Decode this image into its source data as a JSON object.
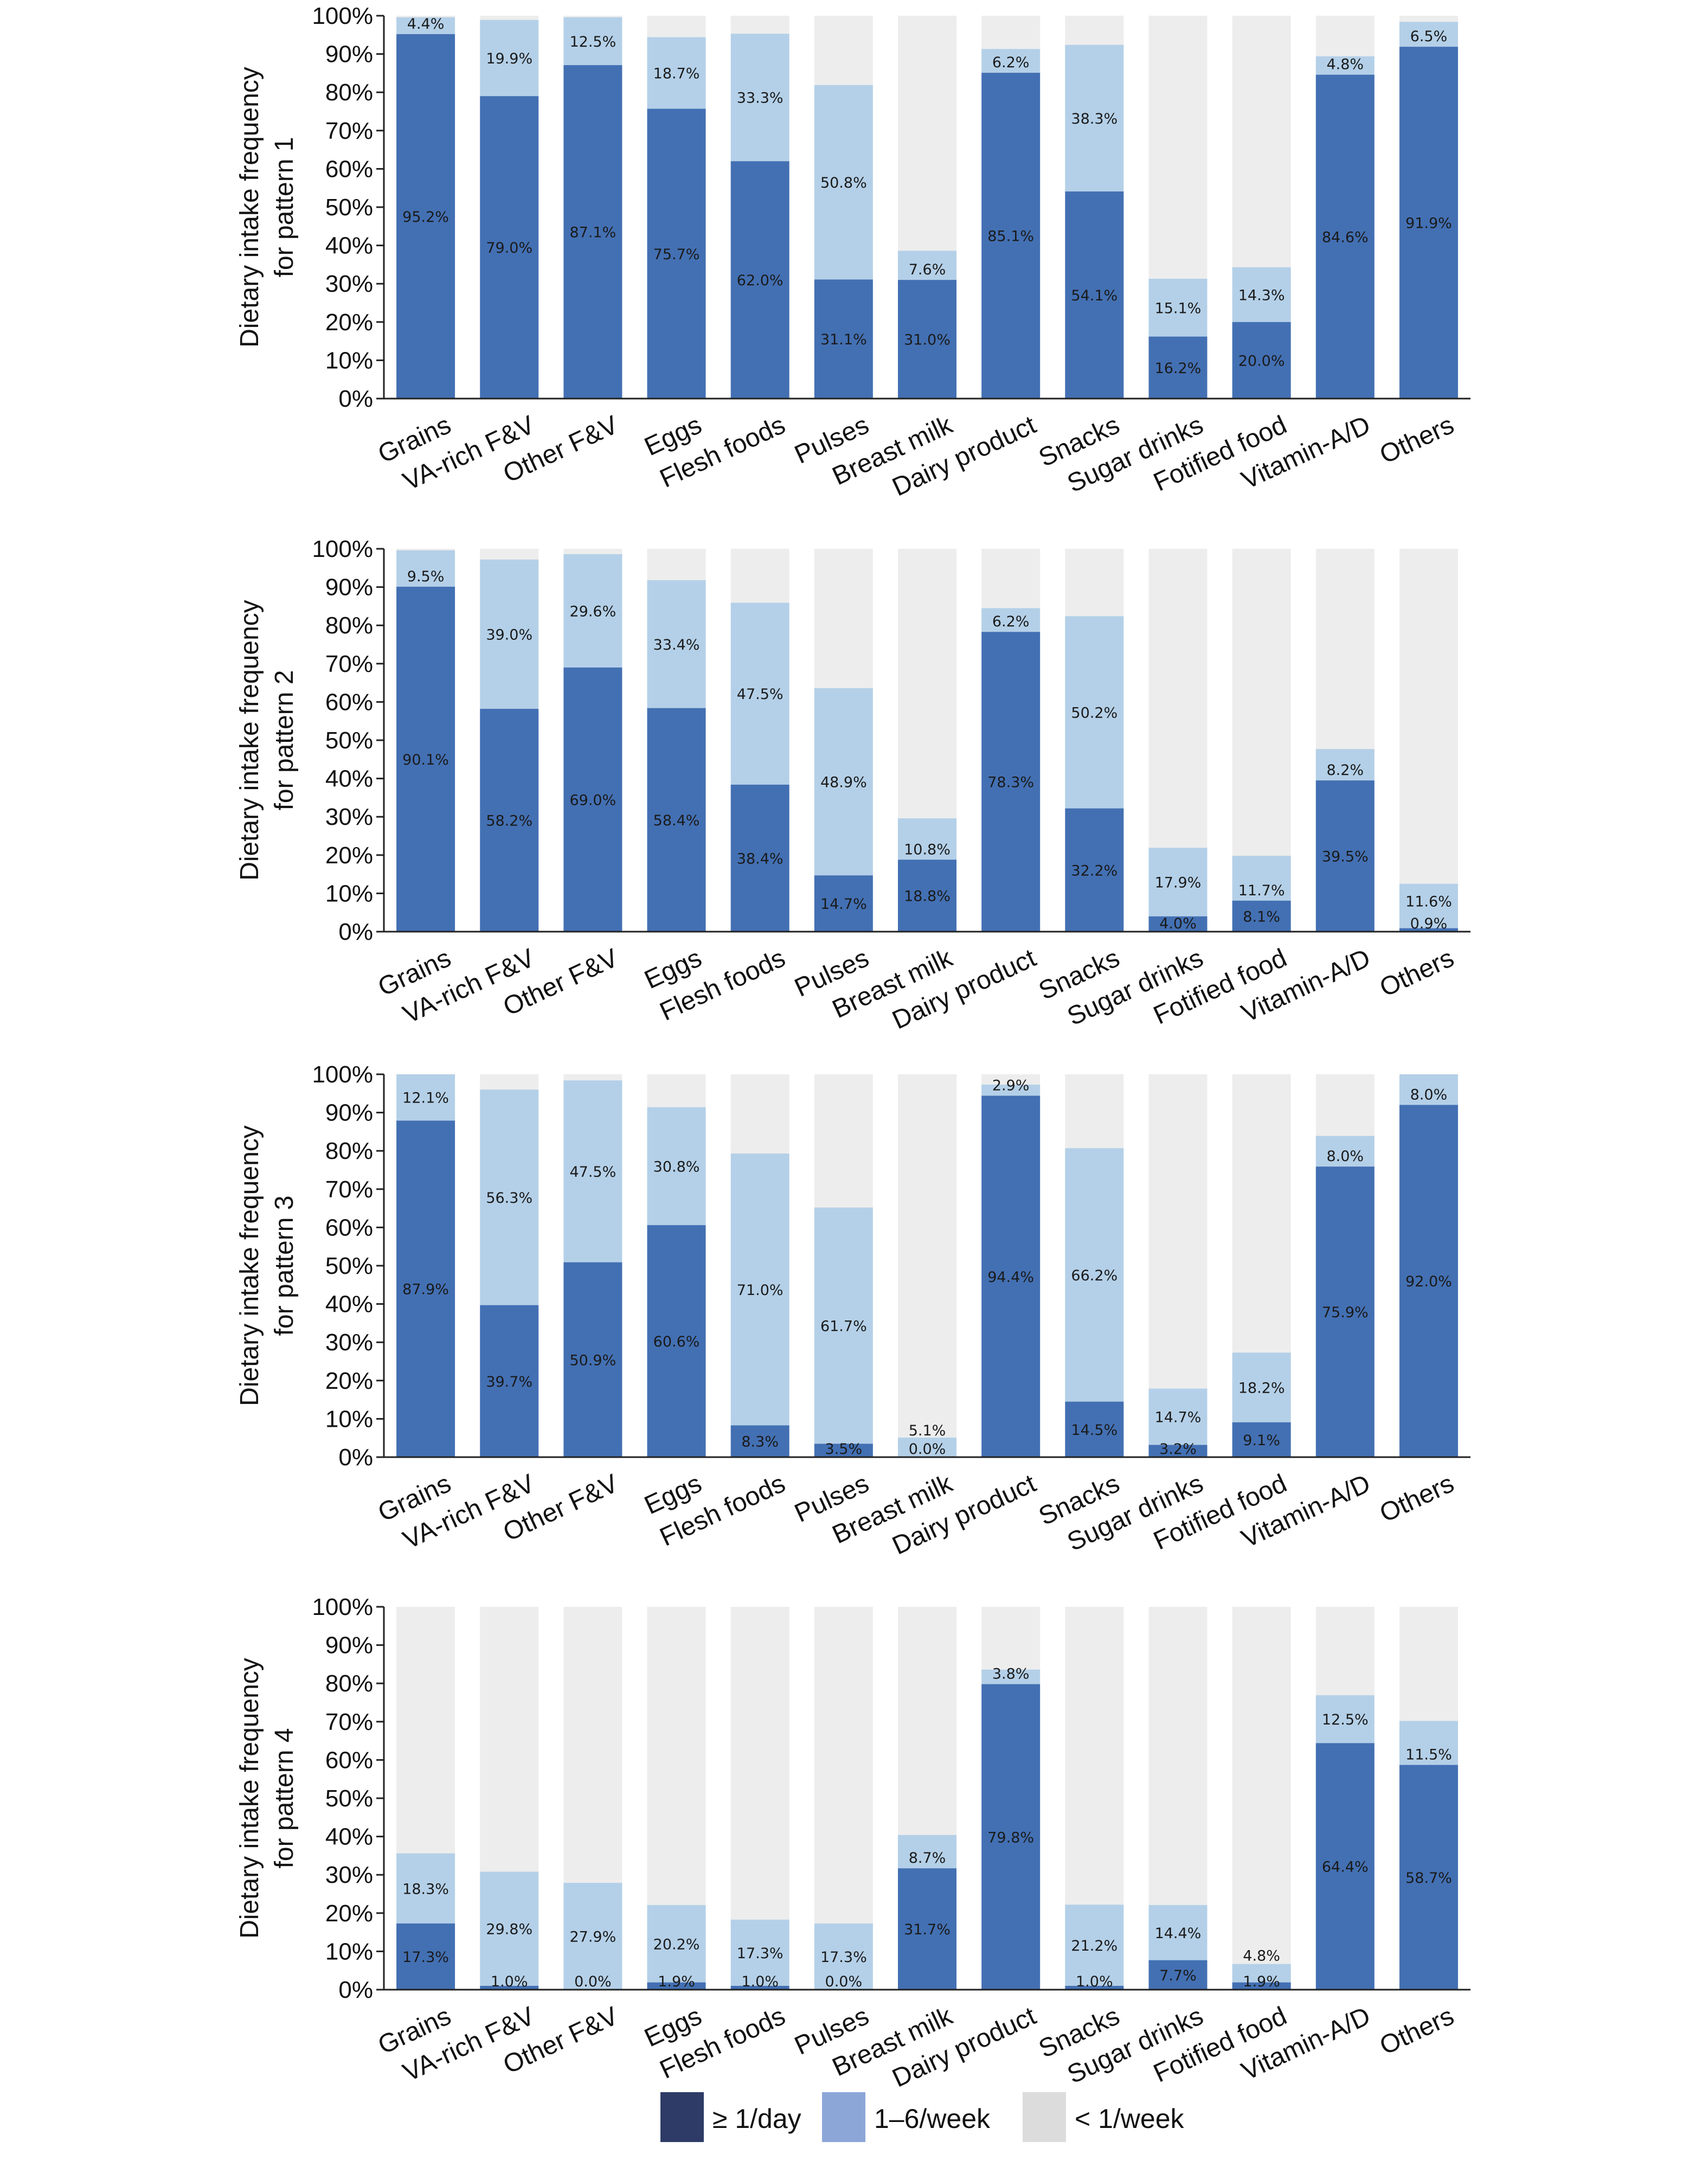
{
  "colors": {
    "daily_bar": "#4370b3",
    "weekly_bar": "#b4d0e8",
    "rare_bar": "#ededed",
    "legend_daily": "#2e3b66",
    "legend_weekly": "#8ca6d8",
    "legend_rare": "#dcdcdc"
  },
  "legend": [
    "≥ 1/day",
    "1–6/week",
    "< 1/week"
  ],
  "chart_data": [
    {
      "type": "bar",
      "stacked": true,
      "ylabel": [
        "Dietary intake frequency",
        "for pattern 1"
      ],
      "ylim": [
        0,
        100
      ],
      "yticks": [
        "0%",
        "10%",
        "20%",
        "30%",
        "40%",
        "50%",
        "60%",
        "70%",
        "80%",
        "90%",
        "100%"
      ],
      "categories": [
        "Grains",
        "VA-rich F&V",
        "Other F&V",
        "Eggs",
        "Flesh foods",
        "Pulses",
        "Breast milk",
        "Dairy product",
        "Snacks",
        "Sugar drinks",
        "Fotified food",
        "Vitamin-A/D",
        "Others"
      ],
      "series": [
        {
          "values": [
            95.2,
            79.0,
            87.1,
            75.7,
            62.0,
            31.1,
            31.0,
            85.1,
            54.1,
            16.2,
            20.0,
            84.6,
            91.9
          ],
          "labels": [
            "95.2%",
            "79.0%",
            "87.1%",
            "75.7%",
            "62.0%",
            "31.1%",
            "31.0%",
            "85.1%",
            "54.1%",
            "16.2%",
            "20.0%",
            "84.6%",
            "91.9%"
          ]
        },
        {
          "values": [
            4.4,
            19.9,
            12.5,
            18.7,
            33.3,
            50.8,
            7.6,
            6.2,
            38.3,
            15.1,
            14.3,
            4.8,
            6.5
          ],
          "labels": [
            "4.4%",
            "19.9%",
            "12.5%",
            "18.7%",
            "33.3%",
            "50.8%",
            "7.6%",
            "6.2%",
            "38.3%",
            "15.1%",
            "14.3%",
            "4.8%",
            "6.5%"
          ]
        }
      ]
    },
    {
      "type": "bar",
      "stacked": true,
      "ylabel": [
        "Dietary intake frequency",
        "for pattern 2"
      ],
      "ylim": [
        0,
        100
      ],
      "yticks": [
        "0%",
        "10%",
        "20%",
        "30%",
        "40%",
        "50%",
        "60%",
        "70%",
        "80%",
        "90%",
        "100%"
      ],
      "categories": [
        "Grains",
        "VA-rich F&V",
        "Other F&V",
        "Eggs",
        "Flesh foods",
        "Pulses",
        "Breast milk",
        "Dairy product",
        "Snacks",
        "Sugar drinks",
        "Fotified food",
        "Vitamin-A/D",
        "Others"
      ],
      "series": [
        {
          "values": [
            90.1,
            58.2,
            69.0,
            58.4,
            38.4,
            14.7,
            18.8,
            78.3,
            32.2,
            4.0,
            8.1,
            39.5,
            0.9
          ],
          "labels": [
            "90.1%",
            "58.2%",
            "69.0%",
            "58.4%",
            "38.4%",
            "14.7%",
            "18.8%",
            "78.3%",
            "32.2%",
            "4.0%",
            "8.1%",
            "39.5%",
            "0.9%"
          ]
        },
        {
          "values": [
            9.5,
            39.0,
            29.6,
            33.4,
            47.5,
            48.9,
            10.8,
            6.2,
            50.2,
            17.9,
            11.7,
            8.2,
            11.6
          ],
          "labels": [
            "9.5%",
            "39.0%",
            "29.6%",
            "33.4%",
            "47.5%",
            "48.9%",
            "10.8%",
            "6.2%",
            "50.2%",
            "17.9%",
            "11.7%",
            "8.2%",
            "11.6%"
          ]
        }
      ]
    },
    {
      "type": "bar",
      "stacked": true,
      "ylabel": [
        "Dietary intake frequency",
        "for pattern 3"
      ],
      "ylim": [
        0,
        100
      ],
      "yticks": [
        "0%",
        "10%",
        "20%",
        "30%",
        "40%",
        "50%",
        "60%",
        "70%",
        "80%",
        "90%",
        "100%"
      ],
      "categories": [
        "Grains",
        "VA-rich F&V",
        "Other F&V",
        "Eggs",
        "Flesh foods",
        "Pulses",
        "Breast milk",
        "Dairy product",
        "Snacks",
        "Sugar drinks",
        "Fotified food",
        "Vitamin-A/D",
        "Others"
      ],
      "series": [
        {
          "values": [
            87.9,
            39.7,
            50.9,
            60.6,
            8.3,
            3.5,
            0.0,
            94.4,
            14.5,
            3.2,
            9.1,
            75.9,
            92.0
          ],
          "labels": [
            "87.9%",
            "39.7%",
            "50.9%",
            "60.6%",
            "8.3%",
            "3.5%",
            "0.0%",
            "94.4%",
            "14.5%",
            "3.2%",
            "9.1%",
            "75.9%",
            "92.0%"
          ]
        },
        {
          "values": [
            12.1,
            56.3,
            47.5,
            30.8,
            71.0,
            61.7,
            5.1,
            2.9,
            66.2,
            14.7,
            18.2,
            8.0,
            8.0
          ],
          "labels": [
            "12.1%",
            "56.3%",
            "47.5%",
            "30.8%",
            "71.0%",
            "61.7%",
            "5.1%",
            "2.9%",
            "66.2%",
            "14.7%",
            "18.2%",
            "8.0%",
            "8.0%"
          ]
        }
      ]
    },
    {
      "type": "bar",
      "stacked": true,
      "ylabel": [
        "Dietary intake frequency",
        "for pattern 4"
      ],
      "ylim": [
        0,
        100
      ],
      "yticks": [
        "0%",
        "10%",
        "20%",
        "30%",
        "40%",
        "50%",
        "60%",
        "70%",
        "80%",
        "90%",
        "100%"
      ],
      "categories": [
        "Grains",
        "VA-rich F&V",
        "Other F&V",
        "Eggs",
        "Flesh foods",
        "Pulses",
        "Breast milk",
        "Dairy product",
        "Snacks",
        "Sugar drinks",
        "Fotified food",
        "Vitamin-A/D",
        "Others"
      ],
      "series": [
        {
          "values": [
            17.3,
            1.0,
            0.0,
            1.9,
            1.0,
            0.0,
            31.7,
            79.8,
            1.0,
            7.7,
            1.9,
            64.4,
            58.7
          ],
          "labels": [
            "17.3%",
            "1.0%",
            "0.0%",
            "1.9%",
            "1.0%",
            "0.0%",
            "31.7%",
            "79.8%",
            "1.0%",
            "7.7%",
            "1.9%",
            "64.4%",
            "58.7%"
          ]
        },
        {
          "values": [
            18.3,
            29.8,
            27.9,
            20.2,
            17.3,
            17.3,
            8.7,
            3.8,
            21.2,
            14.4,
            4.8,
            12.5,
            11.5
          ],
          "labels": [
            "18.3%",
            "29.8%",
            "27.9%",
            "20.2%",
            "17.3%",
            "17.3%",
            "8.7%",
            "3.8%",
            "21.2%",
            "14.4%",
            "4.8%",
            "12.5%",
            "11.5%"
          ]
        }
      ]
    }
  ]
}
